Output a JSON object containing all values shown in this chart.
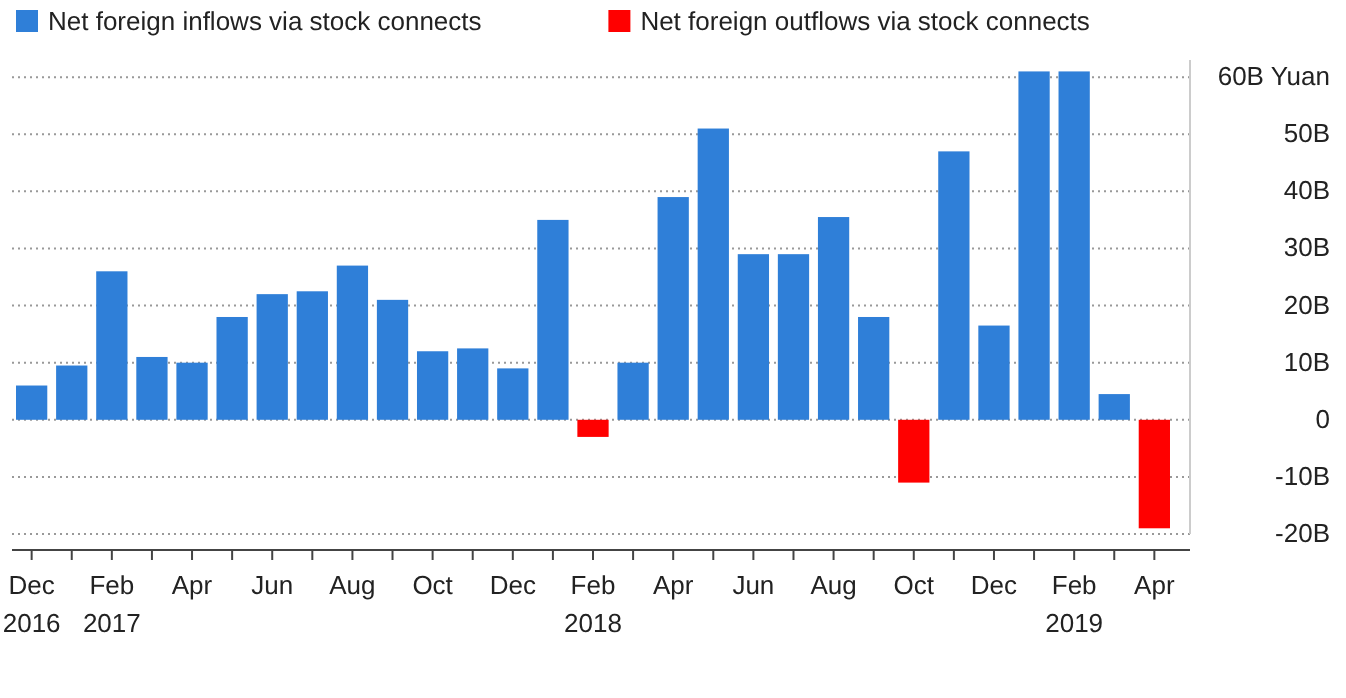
{
  "chart_data": {
    "type": "bar",
    "legend": "top left",
    "grid": "y",
    "categories": [
      "Dec 2016",
      null,
      "Feb 2017",
      null,
      "Apr",
      null,
      "Jun",
      null,
      "Aug",
      null,
      "Oct",
      null,
      "Dec",
      null,
      "Feb 2018",
      null,
      "Apr",
      null,
      "Jun",
      null,
      "Aug",
      null,
      "Oct",
      null,
      "Dec",
      null,
      "Feb 2019",
      null,
      "Apr"
    ],
    "series": [
      {
        "name": "Net foreign inflows via stock connects",
        "color": "#2f7fd8",
        "values": [
          6,
          9.5,
          26,
          11,
          10,
          18,
          22,
          22.5,
          27,
          21,
          12,
          12.5,
          9,
          35,
          null,
          10,
          39,
          51,
          29,
          29,
          35.5,
          18,
          null,
          47,
          16.5,
          61,
          61,
          4.5,
          null
        ]
      },
      {
        "name": "Net foreign outflows via stock connects",
        "color": "#ff0000",
        "values": [
          null,
          null,
          null,
          null,
          null,
          null,
          null,
          null,
          null,
          null,
          null,
          null,
          null,
          null,
          -3,
          null,
          null,
          null,
          null,
          null,
          null,
          null,
          -11,
          null,
          null,
          null,
          null,
          null,
          -19
        ]
      }
    ],
    "ylim": [
      -20,
      63
    ],
    "yticks": [
      {
        "value": -20,
        "label": "-20B"
      },
      {
        "value": -10,
        "label": "-10B"
      },
      0,
      {
        "value": 10,
        "label": "10B"
      },
      {
        "value": 20,
        "label": "20B"
      },
      {
        "value": 30,
        "label": "30B"
      },
      {
        "value": 40,
        "label": "40B"
      },
      {
        "value": 50,
        "label": "50B"
      },
      {
        "value": 60,
        "label": "60B Yuan"
      }
    ]
  }
}
